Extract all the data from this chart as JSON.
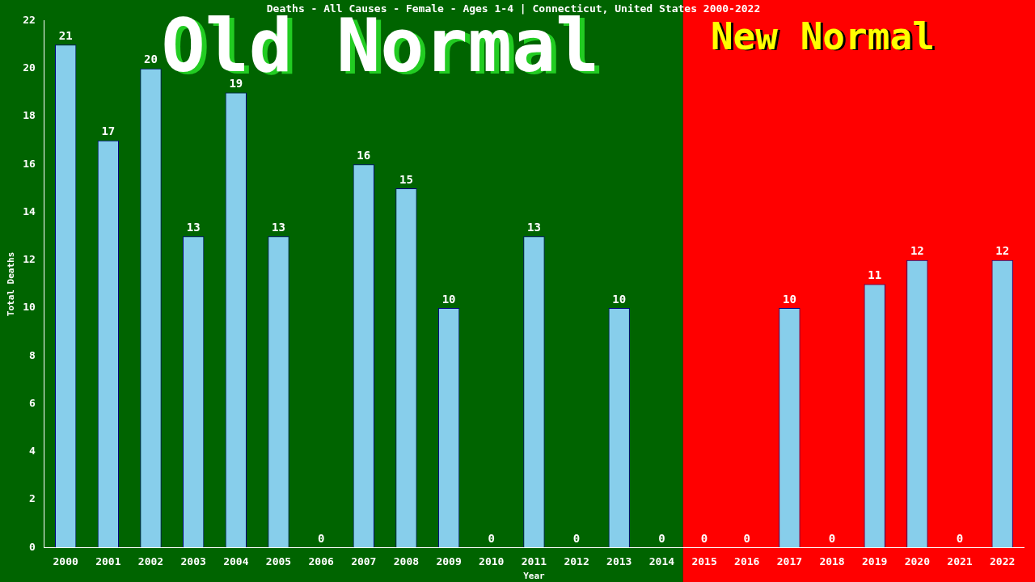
{
  "chart_data": {
    "type": "bar",
    "title": "Deaths - All Causes - Female - Ages 1-4 | Connecticut, United States 2000-2022",
    "xlabel": "Year",
    "ylabel": "Total Deaths",
    "categories": [
      "2000",
      "2001",
      "2002",
      "2003",
      "2004",
      "2005",
      "2006",
      "2007",
      "2008",
      "2009",
      "2010",
      "2011",
      "2012",
      "2013",
      "2014",
      "2015",
      "2016",
      "2017",
      "2018",
      "2019",
      "2020",
      "2021",
      "2022"
    ],
    "values": [
      21,
      17,
      20,
      13,
      19,
      13,
      0,
      16,
      15,
      10,
      0,
      13,
      0,
      10,
      0,
      0,
      0,
      10,
      0,
      11,
      12,
      0,
      12
    ],
    "color": "#87ceeb",
    "ylim": [
      0,
      22
    ],
    "yticks": [
      0,
      2,
      4,
      6,
      8,
      10,
      12,
      14,
      16,
      18,
      20,
      22
    ],
    "grid": false,
    "legend": false,
    "data_labels": true,
    "bands": [
      {
        "axis": "x",
        "from": "2000",
        "to": "2014",
        "label": "Old Normal",
        "color": "#006400"
      },
      {
        "axis": "x",
        "from": "2015",
        "to": "2022",
        "label": "New Normal",
        "color": "#ff0000"
      }
    ]
  }
}
